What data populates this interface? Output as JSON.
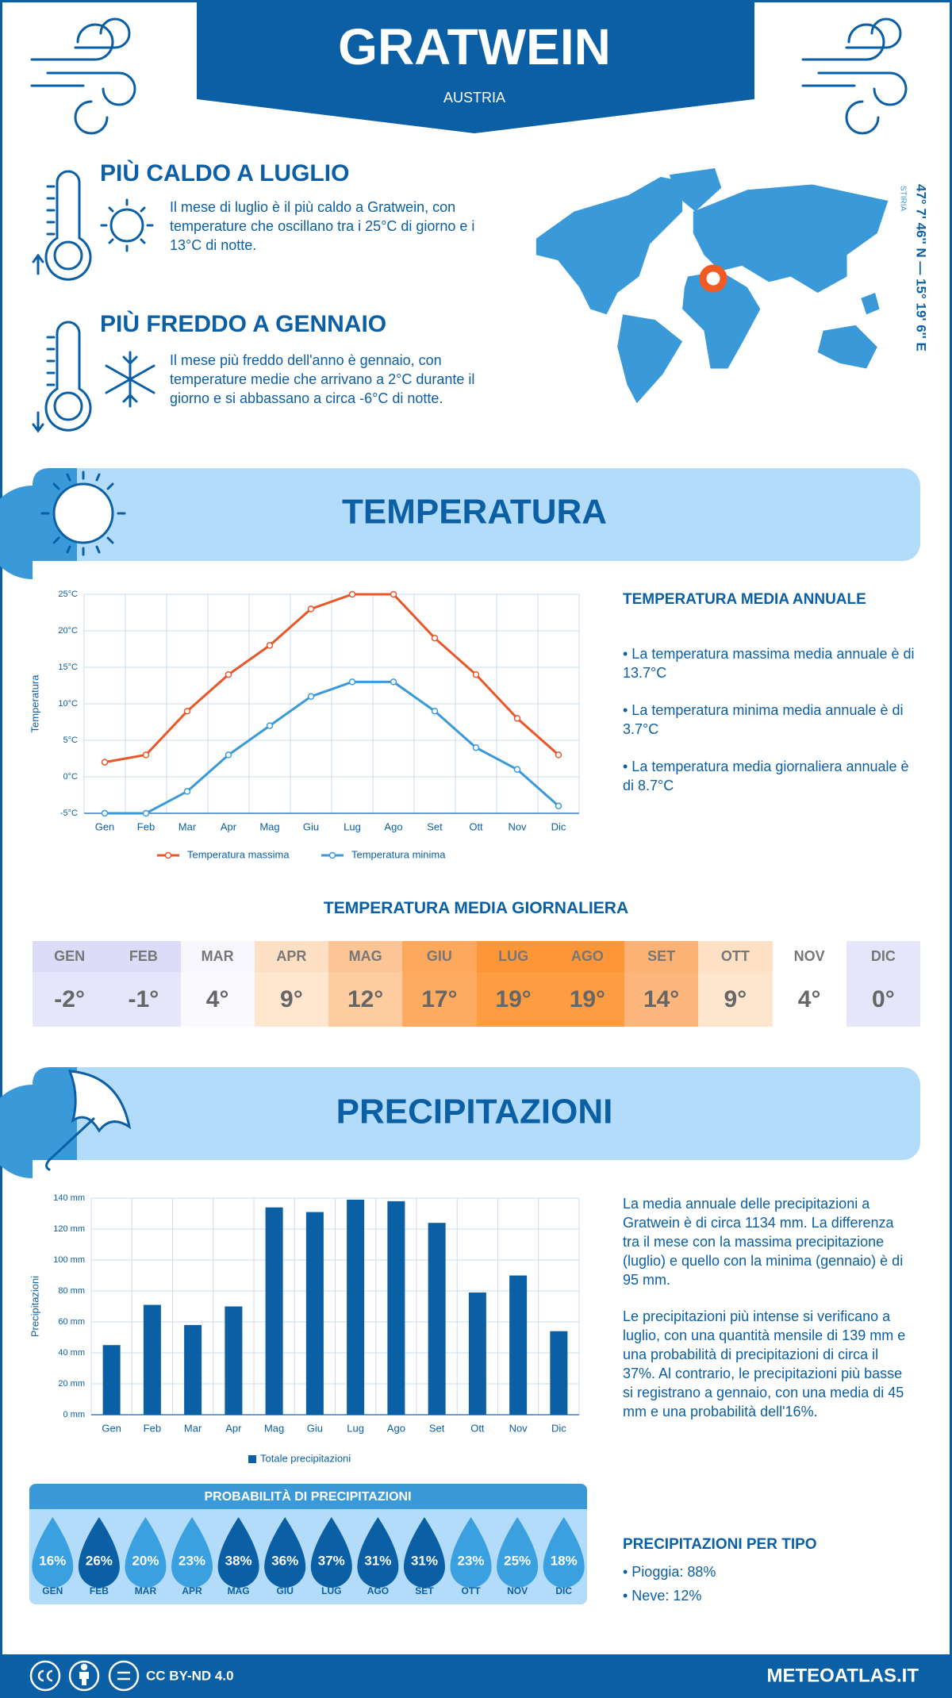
{
  "header": {
    "title": "GRATWEIN",
    "subtitle": "AUSTRIA"
  },
  "highlights": [
    {
      "title": "PIÙ CALDO A LUGLIO",
      "text": "Il mese di luglio è il più caldo a Gratwein, con temperature che oscillano tra i 25°C di giorno e i 13°C di notte."
    },
    {
      "title": "PIÙ FREDDO A GENNAIO",
      "text": "Il mese più freddo dell'anno è gennaio, con temperature medie che arrivano a 2°C durante il giorno e si abbassano a circa -6°C di notte."
    }
  ],
  "location": {
    "coordinates": "47° 7' 46'' N — 15° 19' 6'' E",
    "region": "STIRIA"
  },
  "sections": {
    "temperature": "TEMPERATURA",
    "precipitation": "PRECIPITAZIONI"
  },
  "chart_data": [
    {
      "type": "line",
      "y_label": "Temperatura",
      "categories": [
        "Gen",
        "Feb",
        "Mar",
        "Apr",
        "Mag",
        "Giu",
        "Lug",
        "Ago",
        "Set",
        "Ott",
        "Nov",
        "Dic"
      ],
      "series": [
        {
          "name": "Temperatura massima",
          "color": "#e8572a",
          "values": [
            2,
            3,
            9,
            14,
            18,
            23,
            25,
            25,
            19,
            14,
            8,
            3
          ]
        },
        {
          "name": "Temperatura minima",
          "color": "#3a9ad9",
          "values": [
            -5,
            -5,
            -2,
            3,
            7,
            11,
            13,
            13,
            9,
            4,
            1,
            -4
          ]
        }
      ],
      "ylim": [
        -5,
        25
      ],
      "yticks": [
        {
          "value": -5,
          "label": "-5°C"
        },
        {
          "value": 0,
          "label": "0°C"
        },
        {
          "value": 5,
          "label": "5°C"
        },
        {
          "value": 10,
          "label": "10°C"
        },
        {
          "value": 15,
          "label": "15°C"
        },
        {
          "value": 20,
          "label": "20°C"
        },
        {
          "value": 25,
          "label": "25°C"
        }
      ],
      "grid": true
    },
    {
      "type": "bar",
      "y_label": "Precipitazioni",
      "categories": [
        "Gen",
        "Feb",
        "Mar",
        "Apr",
        "Mag",
        "Giu",
        "Lug",
        "Ago",
        "Set",
        "Ott",
        "Nov",
        "Dic"
      ],
      "series": [
        {
          "name": "Totale precipitazioni",
          "color": "#0b5fa5",
          "values": [
            45,
            71,
            58,
            70,
            134,
            131,
            139,
            138,
            124,
            79,
            90,
            54
          ]
        }
      ],
      "ylim": [
        0,
        140
      ],
      "yticks": [
        {
          "value": 0,
          "label": "0 mm"
        },
        {
          "value": 20,
          "label": "20 mm"
        },
        {
          "value": 40,
          "label": "40 mm"
        },
        {
          "value": 60,
          "label": "60 mm"
        },
        {
          "value": 80,
          "label": "80 mm"
        },
        {
          "value": 100,
          "label": "100 mm"
        },
        {
          "value": 120,
          "label": "120 mm"
        },
        {
          "value": 140,
          "label": "140 mm"
        }
      ],
      "grid": true
    }
  ],
  "annual_temperature": {
    "title": "TEMPERATURA MEDIA ANNUALE",
    "items": [
      "• La temperatura massima media annuale è di 13.7°C",
      "• La temperatura minima media annuale è di 3.7°C",
      "• La temperatura media giornaliera annuale è di 8.7°C"
    ]
  },
  "daily_temperature": {
    "title": "TEMPERATURA MEDIA GIORNALIERA",
    "months": [
      "GEN",
      "FEB",
      "MAR",
      "APR",
      "MAG",
      "GIU",
      "LUG",
      "AGO",
      "SET",
      "OTT",
      "NOV",
      "DIC"
    ],
    "values": [
      "-2°",
      "-1°",
      "4°",
      "9°",
      "12°",
      "17°",
      "19°",
      "19°",
      "14°",
      "9°",
      "4°",
      "0°"
    ],
    "header_colors": [
      "#dcdcf8",
      "#dcdcf8",
      "#f7f7fd",
      "#fde0c4",
      "#fdc596",
      "#fda85c",
      "#fd9637",
      "#fd9637",
      "#fdb275",
      "#fee0c4",
      "#ffffff",
      "#e6e6fa"
    ],
    "value_colors": [
      "#e6e6fb",
      "#e6e6fb",
      "#f9f9fe",
      "#fee6cf",
      "#fdcc9f",
      "#feaa60",
      "#fe9c42",
      "#fe9c42",
      "#fdb67c",
      "#fee5cd",
      "#ffffff",
      "#e6e6fb"
    ]
  },
  "precipitation_text": [
    "La media annuale delle precipitazioni a Gratwein è di circa 1134 mm. La differenza tra il mese con la massima precipitazione (luglio) e quello con la minima (gennaio) è di 95 mm.",
    "Le precipitazioni più intense si verificano a luglio, con una quantità mensile di 139 mm e una probabilità di precipitazioni di circa il 37%. Al contrario, le precipitazioni più basse si registrano a gennaio, con una media di 45 mm e una probabilità dell'16%."
  ],
  "precipitation_probability": {
    "title": "PROBABILITÀ DI PRECIPITAZIONI",
    "months": [
      "GEN",
      "FEB",
      "MAR",
      "APR",
      "MAG",
      "GIU",
      "LUG",
      "AGO",
      "SET",
      "OTT",
      "NOV",
      "DIC"
    ],
    "values": [
      "16%",
      "26%",
      "20%",
      "23%",
      "38%",
      "36%",
      "37%",
      "31%",
      "31%",
      "23%",
      "25%",
      "18%"
    ],
    "colors": [
      "#3aa0e0",
      "#0b5fa5",
      "#3aa0e0",
      "#3aa0e0",
      "#0b5fa5",
      "#0b5fa5",
      "#0b5fa5",
      "#0b5fa5",
      "#0b5fa5",
      "#3aa0e0",
      "#3aa0e0",
      "#3aa0e0"
    ]
  },
  "precipitation_type": {
    "title": "PRECIPITAZIONI PER TIPO",
    "items": [
      "• Pioggia: 88%",
      "• Neve: 12%"
    ]
  },
  "footer": {
    "license": "CC BY-ND 4.0",
    "site": "METEOATLAS.IT"
  }
}
